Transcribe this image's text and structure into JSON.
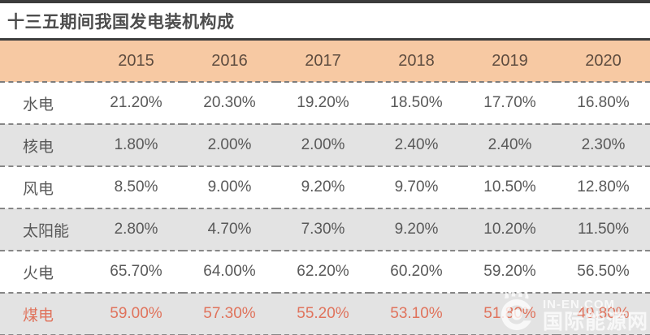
{
  "title": "十三五期间我国发电装机构成",
  "chart_data": {
    "type": "table",
    "title": "十三五期间我国发电装机构成",
    "categories": [
      "2015",
      "2016",
      "2017",
      "2018",
      "2019",
      "2020"
    ],
    "series": [
      {
        "name": "水电",
        "values": [
          "21.20%",
          "20.30%",
          "19.20%",
          "18.50%",
          "17.70%",
          "16.80%"
        ],
        "highlight": false
      },
      {
        "name": "核电",
        "values": [
          "1.80%",
          "2.00%",
          "2.00%",
          "2.40%",
          "2.40%",
          "2.30%"
        ],
        "highlight": false
      },
      {
        "name": "风电",
        "values": [
          "8.50%",
          "9.00%",
          "9.20%",
          "9.70%",
          "10.50%",
          "12.80%"
        ],
        "highlight": false
      },
      {
        "name": "太阳能",
        "values": [
          "2.80%",
          "4.70%",
          "7.30%",
          "9.20%",
          "10.20%",
          "11.50%"
        ],
        "highlight": false
      },
      {
        "name": "火电",
        "values": [
          "65.70%",
          "64.00%",
          "62.20%",
          "60.20%",
          "59.20%",
          "56.50%"
        ],
        "highlight": false
      },
      {
        "name": "煤电",
        "values": [
          "59.00%",
          "57.30%",
          "55.20%",
          "53.10%",
          "51.80%",
          "49.80%"
        ],
        "highlight": true
      }
    ]
  },
  "watermark": {
    "site_name_en": "IN-EN.COM",
    "site_name_cn": "国际能源网",
    "logo": "inen-flame-ring-logo"
  },
  "colors": {
    "header_bg": "#f7c9a3",
    "header_text": "#5e4c3f",
    "row_alt_bg": "#e3e3e3",
    "value_text": "#595959",
    "highlight_text": "#e0735c",
    "title_text": "#4d4d4d",
    "rule_dark": "#3c3c3c"
  }
}
